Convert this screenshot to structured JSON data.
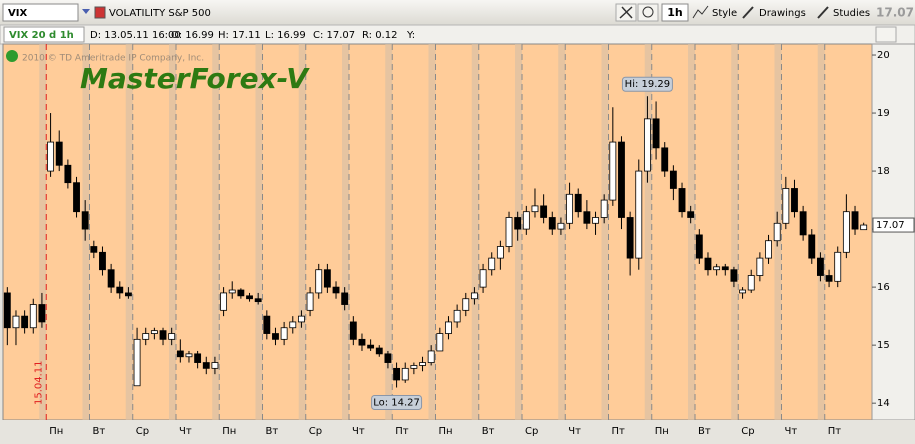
{
  "toolbar": {
    "symbol": "VIX",
    "description": "VOLATILITY S&P 500",
    "timeframe": "1h",
    "style": "Style",
    "drawings": "Drawings",
    "studies": "Studies",
    "price": "17.07"
  },
  "info_bar": {
    "study": "VIX 20 d 1h",
    "date": "D: 13.05.11 16:00",
    "open": "O: 16.99",
    "high": "H: 17.11",
    "low": "L: 16.99",
    "close": "C: 17.07",
    "range": "R: 0.12",
    "y": "Y:"
  },
  "chart_data": {
    "type": "candlestick",
    "watermark": "2010 © TD Ameritrade IP Company, Inc.",
    "brand": "MasterForex-V",
    "date_marker": "15.04.11",
    "hi_label": "Hi: 19.29",
    "lo_label": "Lo: 14.27",
    "last_price": 17.07,
    "up_color": "#ffffff",
    "down_color": "#000000",
    "background": "#ffcc99",
    "ylim": [
      13.71,
      20.19
    ],
    "yticks": [
      14,
      15,
      16,
      17,
      18,
      19,
      20
    ],
    "day_labels": [
      null,
      "Пн",
      "Вт",
      "Ср",
      "Чт",
      "Пн",
      "Вт",
      "Ср",
      "Чт",
      "Пт",
      "Пн",
      "Вт",
      "Ср",
      "Чт",
      "Пт",
      "Пн",
      "Вт",
      "Ср",
      "Чт",
      "Пт"
    ],
    "candles": [
      [
        15.9,
        16.0,
        15.0,
        15.3
      ],
      [
        15.3,
        15.6,
        15.0,
        15.5
      ],
      [
        15.5,
        15.6,
        15.2,
        15.3
      ],
      [
        15.3,
        15.8,
        15.2,
        15.7
      ],
      [
        15.7,
        15.9,
        15.3,
        15.4
      ],
      [
        18.0,
        19.0,
        17.9,
        18.5
      ],
      [
        18.5,
        18.7,
        18.0,
        18.1
      ],
      [
        18.1,
        18.2,
        17.7,
        17.8
      ],
      [
        17.8,
        17.9,
        17.2,
        17.3
      ],
      [
        17.3,
        17.5,
        16.8,
        17.0
      ],
      [
        16.7,
        16.8,
        16.5,
        16.6
      ],
      [
        16.6,
        16.7,
        16.2,
        16.3
      ],
      [
        16.3,
        16.4,
        15.9,
        16.0
      ],
      [
        16.0,
        16.1,
        15.8,
        15.9
      ],
      [
        15.9,
        16.0,
        15.8,
        15.85
      ],
      [
        14.3,
        15.3,
        14.3,
        15.1
      ],
      [
        15.1,
        15.3,
        15.0,
        15.2
      ],
      [
        15.2,
        15.3,
        15.1,
        15.25
      ],
      [
        15.25,
        15.3,
        15.0,
        15.1
      ],
      [
        15.1,
        15.3,
        15.0,
        15.2
      ],
      [
        14.9,
        15.1,
        14.7,
        14.8
      ],
      [
        14.8,
        14.9,
        14.7,
        14.85
      ],
      [
        14.85,
        14.9,
        14.6,
        14.7
      ],
      [
        14.7,
        14.8,
        14.5,
        14.6
      ],
      [
        14.6,
        14.8,
        14.5,
        14.7
      ],
      [
        15.6,
        16.0,
        15.5,
        15.9
      ],
      [
        15.9,
        16.1,
        15.8,
        15.95
      ],
      [
        15.95,
        15.98,
        15.8,
        15.85
      ],
      [
        15.85,
        15.9,
        15.75,
        15.8
      ],
      [
        15.8,
        15.9,
        15.7,
        15.75
      ],
      [
        15.5,
        15.6,
        15.1,
        15.2
      ],
      [
        15.2,
        15.3,
        15.0,
        15.1
      ],
      [
        15.1,
        15.4,
        15.0,
        15.3
      ],
      [
        15.3,
        15.5,
        15.2,
        15.4
      ],
      [
        15.4,
        15.6,
        15.3,
        15.5
      ],
      [
        15.6,
        16.0,
        15.5,
        15.9
      ],
      [
        15.9,
        16.4,
        15.8,
        16.3
      ],
      [
        16.3,
        16.4,
        15.9,
        16.0
      ],
      [
        16.0,
        16.1,
        15.8,
        15.9
      ],
      [
        15.9,
        16.0,
        15.6,
        15.7
      ],
      [
        15.4,
        15.5,
        15.0,
        15.1
      ],
      [
        15.1,
        15.2,
        14.9,
        15.0
      ],
      [
        15.0,
        15.1,
        14.9,
        14.95
      ],
      [
        14.95,
        15.0,
        14.8,
        14.85
      ],
      [
        14.85,
        14.9,
        14.6,
        14.7
      ],
      [
        14.6,
        14.7,
        14.27,
        14.4
      ],
      [
        14.4,
        14.7,
        14.35,
        14.6
      ],
      [
        14.6,
        14.7,
        14.5,
        14.65
      ],
      [
        14.65,
        14.8,
        14.55,
        14.7
      ],
      [
        14.7,
        15.0,
        14.65,
        14.9
      ],
      [
        14.9,
        15.3,
        14.9,
        15.2
      ],
      [
        15.2,
        15.5,
        15.1,
        15.4
      ],
      [
        15.4,
        15.7,
        15.3,
        15.6
      ],
      [
        15.6,
        15.9,
        15.5,
        15.8
      ],
      [
        15.8,
        16.0,
        15.7,
        15.9
      ],
      [
        16.0,
        16.4,
        15.9,
        16.3
      ],
      [
        16.3,
        16.6,
        16.2,
        16.5
      ],
      [
        16.5,
        16.8,
        16.3,
        16.7
      ],
      [
        16.7,
        17.3,
        16.6,
        17.2
      ],
      [
        17.2,
        17.3,
        16.8,
        17.0
      ],
      [
        17.0,
        17.4,
        16.9,
        17.3
      ],
      [
        17.3,
        17.7,
        17.2,
        17.4
      ],
      [
        17.4,
        17.6,
        17.1,
        17.2
      ],
      [
        17.2,
        17.3,
        16.9,
        17.0
      ],
      [
        17.0,
        17.2,
        16.9,
        17.1
      ],
      [
        17.1,
        17.8,
        17.0,
        17.6
      ],
      [
        17.6,
        17.7,
        17.2,
        17.3
      ],
      [
        17.3,
        17.5,
        17.0,
        17.1
      ],
      [
        17.1,
        17.3,
        16.9,
        17.2
      ],
      [
        17.2,
        17.6,
        17.1,
        17.5
      ],
      [
        17.5,
        19.1,
        17.4,
        18.5
      ],
      [
        18.5,
        18.6,
        17.0,
        17.2
      ],
      [
        17.2,
        17.3,
        16.2,
        16.5
      ],
      [
        16.5,
        18.2,
        16.3,
        18.0
      ],
      [
        18.0,
        19.29,
        17.8,
        18.9
      ],
      [
        18.9,
        19.2,
        18.2,
        18.4
      ],
      [
        18.4,
        18.5,
        17.9,
        18.0
      ],
      [
        18.0,
        18.1,
        17.5,
        17.7
      ],
      [
        17.7,
        17.8,
        17.2,
        17.3
      ],
      [
        17.3,
        17.4,
        17.1,
        17.2
      ],
      [
        16.9,
        17.0,
        16.4,
        16.5
      ],
      [
        16.5,
        16.6,
        16.2,
        16.3
      ],
      [
        16.3,
        16.4,
        16.2,
        16.35
      ],
      [
        16.35,
        16.4,
        16.2,
        16.3
      ],
      [
        16.3,
        16.35,
        16.0,
        16.1
      ],
      [
        15.9,
        16.0,
        15.8,
        15.95
      ],
      [
        15.95,
        16.3,
        15.9,
        16.2
      ],
      [
        16.2,
        16.6,
        16.1,
        16.5
      ],
      [
        16.5,
        16.9,
        16.4,
        16.8
      ],
      [
        16.8,
        17.3,
        16.7,
        17.1
      ],
      [
        17.1,
        17.9,
        17.0,
        17.7
      ],
      [
        17.7,
        17.85,
        17.2,
        17.3
      ],
      [
        17.3,
        17.4,
        16.8,
        16.9
      ],
      [
        16.9,
        17.0,
        16.4,
        16.5
      ],
      [
        16.5,
        16.6,
        16.1,
        16.2
      ],
      [
        16.2,
        16.3,
        16.0,
        16.1
      ],
      [
        16.1,
        16.7,
        16.0,
        16.6
      ],
      [
        16.6,
        17.6,
        16.5,
        17.3
      ],
      [
        17.3,
        17.4,
        16.9,
        17.0
      ],
      [
        16.99,
        17.11,
        16.99,
        17.07
      ]
    ]
  }
}
